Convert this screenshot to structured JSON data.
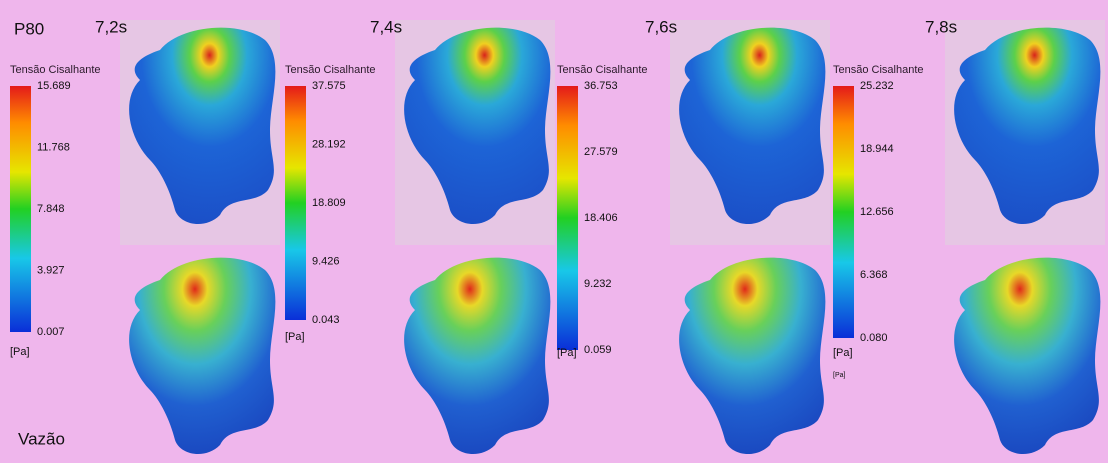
{
  "header": {
    "label": "P80",
    "footer": "Vazão"
  },
  "times": [
    "7,2s",
    "7,4s",
    "7,6s",
    "7,8s"
  ],
  "colorbars": [
    {
      "title": "Tensão Cisalhante",
      "ticks": [
        "15.689",
        "11.768",
        "7.848",
        "3.927",
        "0.007"
      ],
      "unit": "[Pa]"
    },
    {
      "title": "Tensão Cisalhante",
      "ticks": [
        "37.575",
        "28.192",
        "18.809",
        "9.426",
        "0.043"
      ],
      "unit": "[Pa]"
    },
    {
      "title": "Tensão Cisalhante",
      "ticks": [
        "36.753",
        "27.579",
        "18.406",
        "9.232",
        "0.059"
      ],
      "unit": "[Pa]"
    },
    {
      "title": "Tensão Cisalhante",
      "ticks": [
        "25.232",
        "18.944",
        "12.656",
        "6.368",
        "0.080"
      ],
      "unit": "[Pa]",
      "note": "[Pa]"
    }
  ]
}
